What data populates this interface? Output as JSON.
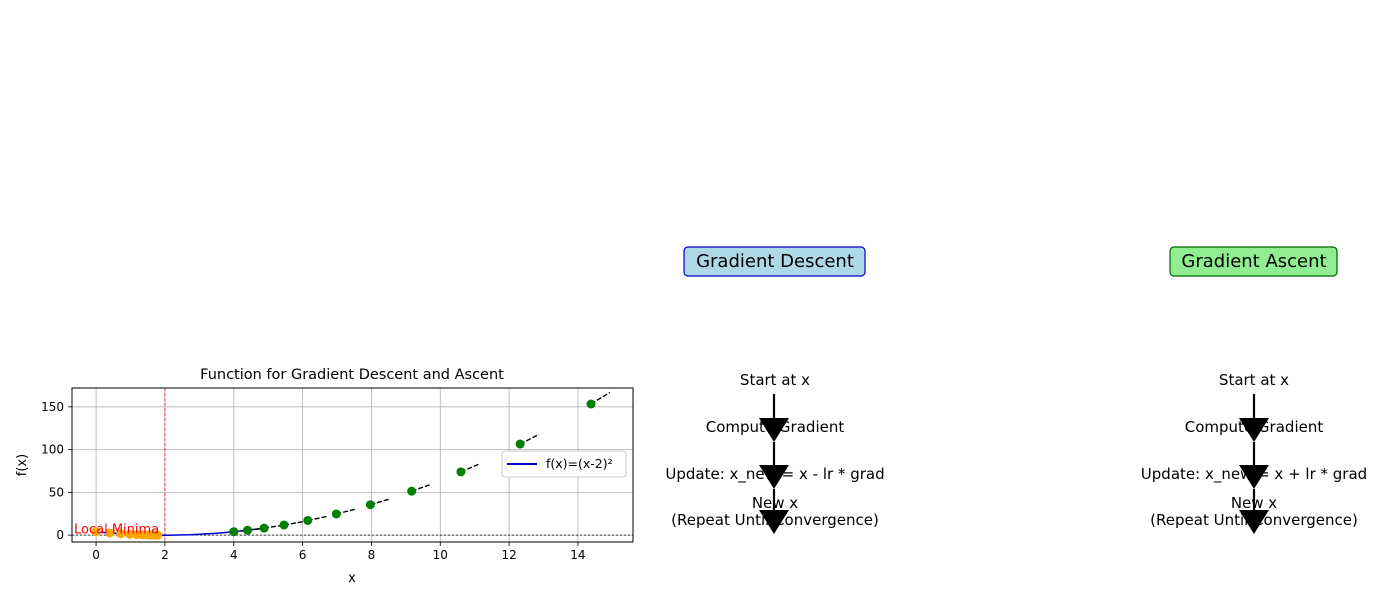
{
  "chart_data": {
    "type": "line",
    "title": "Function for Gradient Descent and Ascent",
    "xlabel": "x",
    "ylabel": "f(x)",
    "xlim": [
      -0.7,
      15.6
    ],
    "ylim": [
      -8,
      172
    ],
    "xticks": [
      0,
      2,
      4,
      6,
      8,
      10,
      12,
      14
    ],
    "yticks": [
      0,
      50,
      100,
      150
    ],
    "grid": true,
    "legend_position": "center-right",
    "series": [
      {
        "name": "f(x)=(x-2)²",
        "type": "line",
        "color": "#0000cc",
        "x": [
          0.0,
          0.25,
          0.5,
          0.75,
          1.0,
          1.25,
          1.5,
          1.75,
          2.0,
          2.25,
          2.5,
          2.75,
          3.0,
          3.25,
          3.5,
          3.75,
          4.0,
          4.25,
          4.5,
          4.75,
          5.0
        ],
        "y": [
          4.0,
          3.06,
          2.25,
          1.56,
          1.0,
          0.56,
          0.25,
          0.06,
          0.0,
          0.06,
          0.25,
          0.56,
          1.0,
          1.56,
          2.25,
          3.06,
          4.0,
          5.06,
          6.25,
          7.56,
          9.0
        ]
      },
      {
        "type": "scatter",
        "color": "#ffa500",
        "x": [
          0.0,
          0.4,
          0.72,
          0.98,
          1.18,
          1.34,
          1.48,
          1.58,
          1.66,
          1.73,
          1.79
        ],
        "y": [
          4.0,
          2.56,
          1.64,
          1.05,
          0.67,
          0.43,
          0.27,
          0.18,
          0.12,
          0.07,
          0.04
        ]
      },
      {
        "type": "scatter",
        "color": "#008000",
        "x": [
          4.0,
          4.4,
          4.88,
          5.46,
          6.15,
          6.98,
          7.97,
          9.17,
          10.6,
          12.32,
          14.38
        ],
        "y": [
          4.0,
          5.76,
          8.29,
          11.94,
          17.2,
          24.8,
          35.6,
          51.4,
          74.0,
          106.5,
          153.3
        ]
      }
    ],
    "annotations": {
      "minima_label": "Local Minima",
      "minima_x": 2
    }
  },
  "flow_left": {
    "title": "Gradient Descent",
    "steps": [
      "Start at x",
      "Compute Gradient",
      "Update: x_new = x - lr * grad",
      "New x",
      "(Repeat Until Convergence)"
    ]
  },
  "flow_right": {
    "title": "Gradient Ascent",
    "steps": [
      "Start at x",
      "Compute Gradient",
      "Update: x_new = x + lr * grad",
      "New x",
      "(Repeat Until Convergence)"
    ]
  },
  "colors": {
    "descent_box_fill": "#add8e6",
    "descent_box_edge": "#0000cc",
    "ascent_box_fill": "#90ee90",
    "ascent_box_edge": "#006400",
    "minima_color": "#ff0000"
  }
}
